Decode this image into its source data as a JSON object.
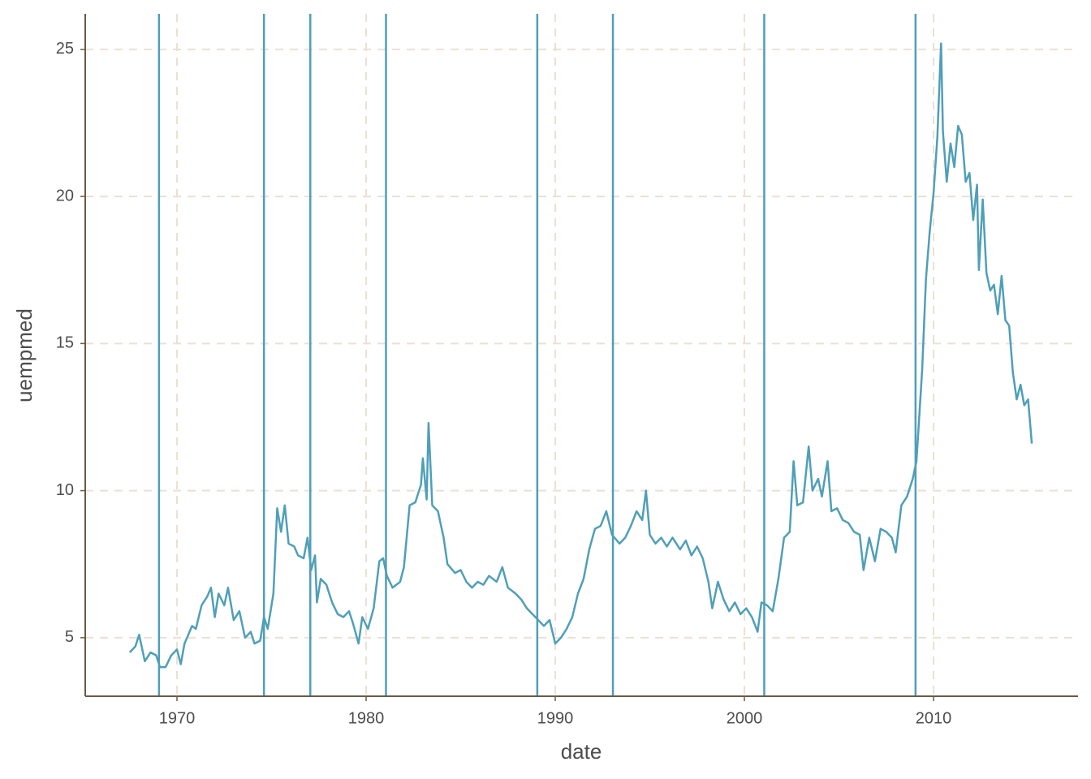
{
  "chart_data": {
    "type": "line",
    "x_label": "date",
    "y_label": "uempmed",
    "color": "#4f9fb8",
    "vline_color": "#4f9fb8",
    "vlines": [
      1969.05,
      1974.6,
      1977.05,
      1981.05,
      1989.05,
      1993.05,
      2001.05,
      2009.05
    ],
    "x": [
      1967.5,
      1967.8,
      1968.0,
      1968.3,
      1968.6,
      1968.9,
      1969.1,
      1969.4,
      1969.7,
      1970.0,
      1970.2,
      1970.4,
      1970.8,
      1971.0,
      1971.3,
      1971.6,
      1971.8,
      1972.0,
      1972.2,
      1972.5,
      1972.7,
      1973.0,
      1973.3,
      1973.6,
      1973.9,
      1974.1,
      1974.4,
      1974.6,
      1974.8,
      1975.1,
      1975.3,
      1975.5,
      1975.7,
      1975.9,
      1976.2,
      1976.4,
      1976.7,
      1976.9,
      1977.1,
      1977.3,
      1977.4,
      1977.6,
      1977.9,
      1978.2,
      1978.5,
      1978.8,
      1979.1,
      1979.3,
      1979.6,
      1979.8,
      1980.1,
      1980.4,
      1980.7,
      1980.9,
      1981.1,
      1981.4,
      1981.8,
      1982.0,
      1982.3,
      1982.6,
      1982.9,
      1983.0,
      1983.2,
      1983.3,
      1983.5,
      1983.8,
      1984.1,
      1984.3,
      1984.7,
      1985.0,
      1985.3,
      1985.6,
      1985.9,
      1986.2,
      1986.5,
      1986.9,
      1987.2,
      1987.5,
      1987.9,
      1988.2,
      1988.5,
      1988.8,
      1989.1,
      1989.4,
      1989.7,
      1990.0,
      1990.3,
      1990.6,
      1990.9,
      1991.2,
      1991.5,
      1991.8,
      1992.1,
      1992.4,
      1992.7,
      1993.0,
      1993.4,
      1993.7,
      1994.0,
      1994.3,
      1994.6,
      1994.8,
      1995.0,
      1995.3,
      1995.6,
      1995.9,
      1996.2,
      1996.6,
      1996.9,
      1997.2,
      1997.5,
      1997.8,
      1998.1,
      1998.3,
      1998.6,
      1998.9,
      1999.2,
      1999.5,
      1999.8,
      2000.1,
      2000.4,
      2000.7,
      2000.9,
      2001.2,
      2001.5,
      2001.8,
      2002.1,
      2002.4,
      2002.6,
      2002.8,
      2003.1,
      2003.4,
      2003.6,
      2003.9,
      2004.1,
      2004.4,
      2004.6,
      2004.9,
      2005.2,
      2005.5,
      2005.8,
      2006.1,
      2006.3,
      2006.6,
      2006.9,
      2007.2,
      2007.5,
      2007.8,
      2008.0,
      2008.3,
      2008.6,
      2008.9,
      2009.1,
      2009.4,
      2009.6,
      2009.8,
      2010.0,
      2010.2,
      2010.4,
      2010.5,
      2010.7,
      2010.9,
      2011.1,
      2011.3,
      2011.5,
      2011.7,
      2011.9,
      2012.1,
      2012.3,
      2012.4,
      2012.6,
      2012.8,
      2013.0,
      2013.2,
      2013.4,
      2013.6,
      2013.8,
      2014.0,
      2014.2,
      2014.4,
      2014.6,
      2014.8,
      2015.0,
      2015.2
    ],
    "values": [
      4.5,
      4.7,
      5.1,
      4.2,
      4.5,
      4.4,
      4.0,
      4.0,
      4.4,
      4.6,
      4.1,
      4.8,
      5.4,
      5.3,
      6.1,
      6.4,
      6.7,
      5.7,
      6.5,
      6.1,
      6.7,
      5.6,
      5.9,
      5.0,
      5.2,
      4.8,
      4.9,
      5.7,
      5.3,
      6.5,
      9.4,
      8.6,
      9.5,
      8.2,
      8.1,
      7.8,
      7.7,
      8.4,
      7.3,
      7.8,
      6.2,
      7.0,
      6.8,
      6.2,
      5.8,
      5.7,
      5.9,
      5.5,
      4.8,
      5.7,
      5.3,
      6.0,
      7.6,
      7.7,
      7.1,
      6.7,
      6.9,
      7.4,
      9.5,
      9.6,
      10.2,
      11.1,
      9.7,
      12.3,
      9.5,
      9.3,
      8.4,
      7.5,
      7.2,
      7.3,
      6.9,
      6.7,
      6.9,
      6.8,
      7.1,
      6.9,
      7.4,
      6.7,
      6.5,
      6.3,
      6.0,
      5.8,
      5.6,
      5.4,
      5.6,
      4.8,
      5.0,
      5.3,
      5.7,
      6.5,
      7.0,
      8.0,
      8.7,
      8.8,
      9.3,
      8.5,
      8.2,
      8.4,
      8.8,
      9.3,
      9.0,
      10.0,
      8.5,
      8.2,
      8.4,
      8.1,
      8.4,
      8.0,
      8.3,
      7.8,
      8.1,
      7.7,
      6.9,
      6.0,
      6.9,
      6.3,
      5.9,
      6.2,
      5.8,
      6.0,
      5.7,
      5.2,
      6.2,
      6.1,
      5.9,
      7.0,
      8.4,
      8.6,
      11.0,
      9.5,
      9.6,
      11.5,
      10.0,
      10.4,
      9.8,
      11.0,
      9.3,
      9.4,
      9.0,
      8.9,
      8.6,
      8.5,
      7.3,
      8.4,
      7.6,
      8.7,
      8.6,
      8.4,
      7.9,
      9.5,
      9.8,
      10.4,
      11.0,
      14.1,
      17.2,
      18.8,
      20.1,
      22.0,
      25.2,
      22.2,
      20.5,
      21.8,
      21.0,
      22.4,
      22.1,
      20.5,
      20.8,
      19.2,
      20.4,
      17.5,
      19.9,
      17.4,
      16.8,
      17.0,
      16.0,
      17.3,
      15.8,
      15.6,
      14.0,
      13.1,
      13.6,
      12.9,
      13.1,
      11.6
    ],
    "xlim": [
      1965.15,
      2017.64
    ],
    "ylim": [
      3.01,
      26.21
    ],
    "xticks": [
      1970,
      1980,
      1990,
      2000,
      2010
    ],
    "yticks": [
      5,
      10,
      15,
      20,
      25
    ],
    "grid": true,
    "grid_color": "#ebe0d3",
    "axis_color": "#6b5a45"
  }
}
